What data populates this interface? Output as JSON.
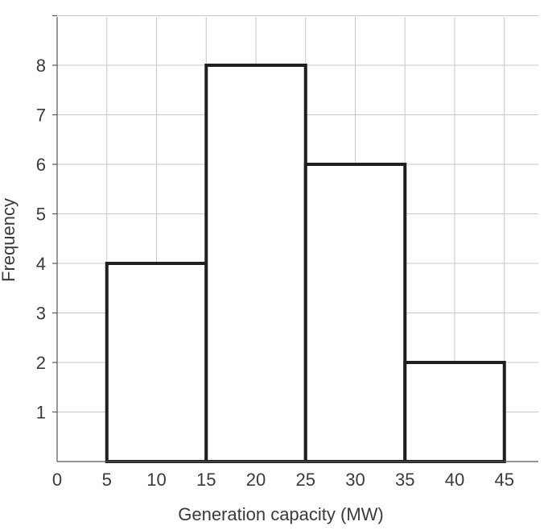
{
  "chart_data": {
    "type": "bar",
    "bins": [
      {
        "from": 5,
        "to": 15,
        "value": 4
      },
      {
        "from": 15,
        "to": 25,
        "value": 8
      },
      {
        "from": 25,
        "to": 35,
        "value": 6
      },
      {
        "from": 35,
        "to": 45,
        "value": 2
      }
    ],
    "xlabel": "Generation capacity (MW)",
    "ylabel": "Frequency",
    "xlim": [
      0,
      48
    ],
    "ylim": [
      0,
      9
    ],
    "x_ticks": [
      0,
      5,
      10,
      15,
      20,
      25,
      30,
      35,
      40,
      45
    ],
    "y_ticks": [
      1,
      2,
      3,
      4,
      5,
      6,
      7,
      8
    ],
    "grid": true,
    "colors": {
      "bar_fill": "#ffffff",
      "bar_stroke": "#1f1f1f",
      "grid": "#c8c8c8"
    }
  }
}
